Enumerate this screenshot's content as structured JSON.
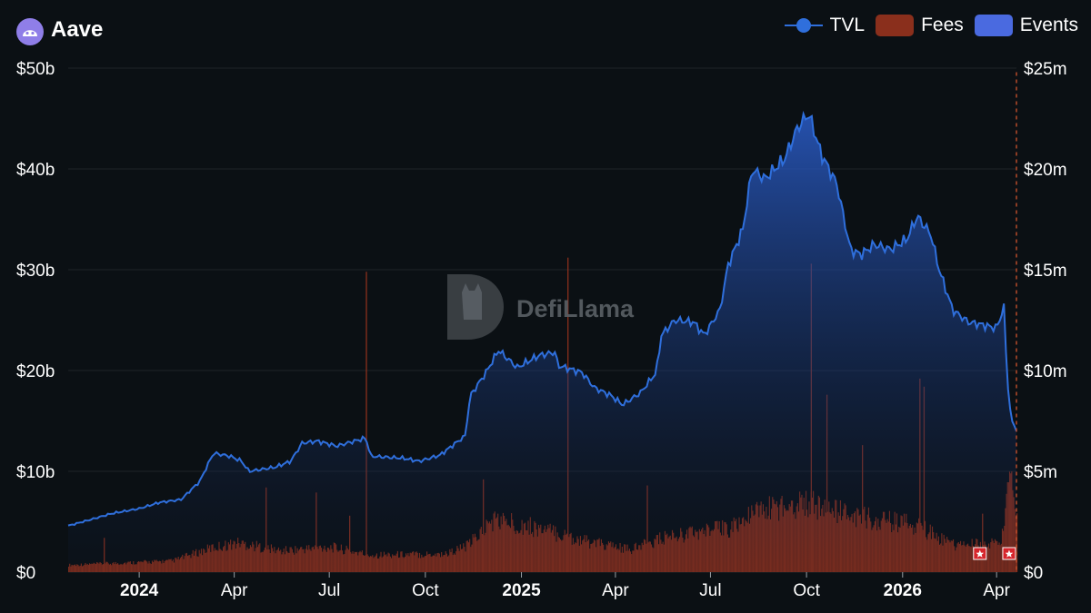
{
  "header": {
    "title": "Aave",
    "logo_icon": "aave-ghost-icon",
    "logo_color": "#8f7ee8"
  },
  "legend": {
    "placement": "top-right",
    "items": [
      {
        "label": "TVL",
        "color": "#2f6fdc",
        "kind": "line"
      },
      {
        "label": "Fees",
        "color": "#8a2f1c",
        "kind": "bar"
      },
      {
        "label": "Events",
        "color": "#4a6ae0",
        "kind": "box"
      }
    ]
  },
  "watermark": {
    "text": "DefiLlama",
    "icon": "llama-logo-icon"
  },
  "event_marker_icon": "star-flag-icon",
  "chart_data": {
    "type": "line",
    "x_range": [
      "2023-10-25",
      "2026-04-20"
    ],
    "x_ticks": [
      {
        "label": "2024",
        "date": "2024-01-01",
        "bold": true
      },
      {
        "label": "Apr",
        "date": "2024-04-01",
        "bold": false
      },
      {
        "label": "Jul",
        "date": "2024-07-01",
        "bold": false
      },
      {
        "label": "Oct",
        "date": "2024-10-01",
        "bold": false
      },
      {
        "label": "2025",
        "date": "2025-01-01",
        "bold": true
      },
      {
        "label": "Apr",
        "date": "2025-04-01",
        "bold": false
      },
      {
        "label": "Jul",
        "date": "2025-07-01",
        "bold": false
      },
      {
        "label": "Oct",
        "date": "2025-10-01",
        "bold": false
      },
      {
        "label": "2026",
        "date": "2026-01-01",
        "bold": true
      },
      {
        "label": "Apr",
        "date": "2026-04-01",
        "bold": false
      }
    ],
    "y_left": {
      "series": "TVL",
      "range": [
        0,
        50
      ],
      "unit": "billion USD",
      "ticks": [
        {
          "value": 0,
          "label": "$0"
        },
        {
          "value": 10,
          "label": "$10b"
        },
        {
          "value": 20,
          "label": "$20b"
        },
        {
          "value": 30,
          "label": "$30b"
        },
        {
          "value": 40,
          "label": "$40b"
        },
        {
          "value": 50,
          "label": "$50b"
        }
      ]
    },
    "y_right": {
      "series": "Fees",
      "range": [
        0,
        25
      ],
      "unit": "million USD",
      "ticks": [
        {
          "value": 0,
          "label": "$0"
        },
        {
          "value": 5,
          "label": "$5m"
        },
        {
          "value": 10,
          "label": "$10m"
        },
        {
          "value": 15,
          "label": "$15m"
        },
        {
          "value": 20,
          "label": "$20m"
        },
        {
          "value": 25,
          "label": "$25m"
        }
      ]
    },
    "grid": true,
    "series": [
      {
        "name": "TVL",
        "type": "area",
        "axis": "left",
        "color": "#2f6fdc",
        "points": [
          [
            "2023-10-25",
            4.6
          ],
          [
            "2023-11-15",
            5.2
          ],
          [
            "2023-12-05",
            5.8
          ],
          [
            "2024-01-01",
            6.3
          ],
          [
            "2024-01-20",
            6.9
          ],
          [
            "2024-02-10",
            7.2
          ],
          [
            "2024-02-28",
            9.0
          ],
          [
            "2024-03-12",
            11.8
          ],
          [
            "2024-03-28",
            11.5
          ],
          [
            "2024-04-08",
            11.0
          ],
          [
            "2024-04-15",
            10.0
          ],
          [
            "2024-05-10",
            10.4
          ],
          [
            "2024-05-25",
            11.0
          ],
          [
            "2024-06-05",
            12.8
          ],
          [
            "2024-06-20",
            13.0
          ],
          [
            "2024-07-08",
            12.5
          ],
          [
            "2024-07-25",
            13.0
          ],
          [
            "2024-08-05",
            13.3
          ],
          [
            "2024-08-10",
            11.5
          ],
          [
            "2024-09-10",
            11.3
          ],
          [
            "2024-09-25",
            11.0
          ],
          [
            "2024-10-15",
            11.6
          ],
          [
            "2024-10-30",
            12.8
          ],
          [
            "2024-11-08",
            13.5
          ],
          [
            "2024-11-13",
            17.5
          ],
          [
            "2024-11-28",
            19.8
          ],
          [
            "2024-12-10",
            22.0
          ],
          [
            "2024-12-28",
            20.3
          ],
          [
            "2025-01-18",
            21.5
          ],
          [
            "2025-02-02",
            21.8
          ],
          [
            "2025-02-05",
            20.5
          ],
          [
            "2025-02-28",
            19.8
          ],
          [
            "2025-03-12",
            18.3
          ],
          [
            "2025-03-28",
            17.5
          ],
          [
            "2025-04-08",
            16.6
          ],
          [
            "2025-04-25",
            17.8
          ],
          [
            "2025-05-10",
            19.8
          ],
          [
            "2025-05-15",
            23.5
          ],
          [
            "2025-05-28",
            25.0
          ],
          [
            "2025-06-15",
            24.8
          ],
          [
            "2025-06-25",
            23.5
          ],
          [
            "2025-07-10",
            26.0
          ],
          [
            "2025-07-18",
            30.5
          ],
          [
            "2025-08-01",
            34.0
          ],
          [
            "2025-08-10",
            40.0
          ],
          [
            "2025-08-22",
            39.0
          ],
          [
            "2025-09-10",
            41.0
          ],
          [
            "2025-09-22",
            44.0
          ],
          [
            "2025-10-03",
            45.5
          ],
          [
            "2025-10-15",
            41.5
          ],
          [
            "2025-10-30",
            38.5
          ],
          [
            "2025-11-05",
            35.5
          ],
          [
            "2025-11-12",
            32.0
          ],
          [
            "2025-11-22",
            31.5
          ],
          [
            "2025-12-05",
            32.5
          ],
          [
            "2025-12-20",
            32.0
          ],
          [
            "2026-01-05",
            33.0
          ],
          [
            "2026-01-15",
            35.3
          ],
          [
            "2026-01-28",
            33.5
          ],
          [
            "2026-02-05",
            30.0
          ],
          [
            "2026-02-18",
            26.0
          ],
          [
            "2026-03-05",
            24.8
          ],
          [
            "2026-03-20",
            24.5
          ],
          [
            "2026-04-01",
            24.2
          ],
          [
            "2026-04-08",
            26.3
          ],
          [
            "2026-04-11",
            19.5
          ],
          [
            "2026-04-15",
            15.0
          ],
          [
            "2026-04-20",
            14.2
          ]
        ]
      },
      {
        "name": "Fees",
        "type": "bar",
        "axis": "right",
        "color": "#8a2f1c",
        "baseline_points": [
          [
            "2023-10-25",
            0.35
          ],
          [
            "2024-02-01",
            0.55
          ],
          [
            "2024-03-10",
            1.2
          ],
          [
            "2024-04-05",
            1.45
          ],
          [
            "2024-05-15",
            1.05
          ],
          [
            "2024-07-01",
            1.25
          ],
          [
            "2024-08-08",
            0.85
          ],
          [
            "2024-10-20",
            0.9
          ],
          [
            "2024-11-10",
            1.3
          ],
          [
            "2024-12-05",
            2.6
          ],
          [
            "2025-01-10",
            2.25
          ],
          [
            "2025-03-05",
            1.5
          ],
          [
            "2025-04-15",
            1.1
          ],
          [
            "2025-05-20",
            1.75
          ],
          [
            "2025-07-20",
            2.2
          ],
          [
            "2025-08-20",
            3.1
          ],
          [
            "2025-10-01",
            3.45
          ],
          [
            "2025-11-15",
            2.75
          ],
          [
            "2026-01-15",
            2.3
          ],
          [
            "2026-02-20",
            1.3
          ],
          [
            "2026-04-05",
            1.45
          ],
          [
            "2026-04-14",
            4.8
          ],
          [
            "2026-04-20",
            2.4
          ]
        ],
        "spikes": [
          [
            "2023-11-28",
            1.7
          ],
          [
            "2024-05-01",
            4.2
          ],
          [
            "2024-06-18",
            3.95
          ],
          [
            "2024-07-20",
            2.8
          ],
          [
            "2024-08-05",
            14.9
          ],
          [
            "2024-11-25",
            4.6
          ],
          [
            "2025-02-14",
            15.6
          ],
          [
            "2025-05-01",
            4.3
          ],
          [
            "2025-10-05",
            15.3
          ],
          [
            "2025-10-20",
            8.8
          ],
          [
            "2025-11-23",
            6.3
          ],
          [
            "2026-01-17",
            9.6
          ],
          [
            "2026-01-21",
            9.2
          ],
          [
            "2026-03-18",
            2.9
          ],
          [
            "2026-04-14",
            4.9
          ]
        ]
      }
    ],
    "events": [
      {
        "date": "2026-03-16",
        "label": "event"
      },
      {
        "date": "2026-04-13",
        "label": "event"
      }
    ],
    "event_line_date": "2026-04-20"
  }
}
